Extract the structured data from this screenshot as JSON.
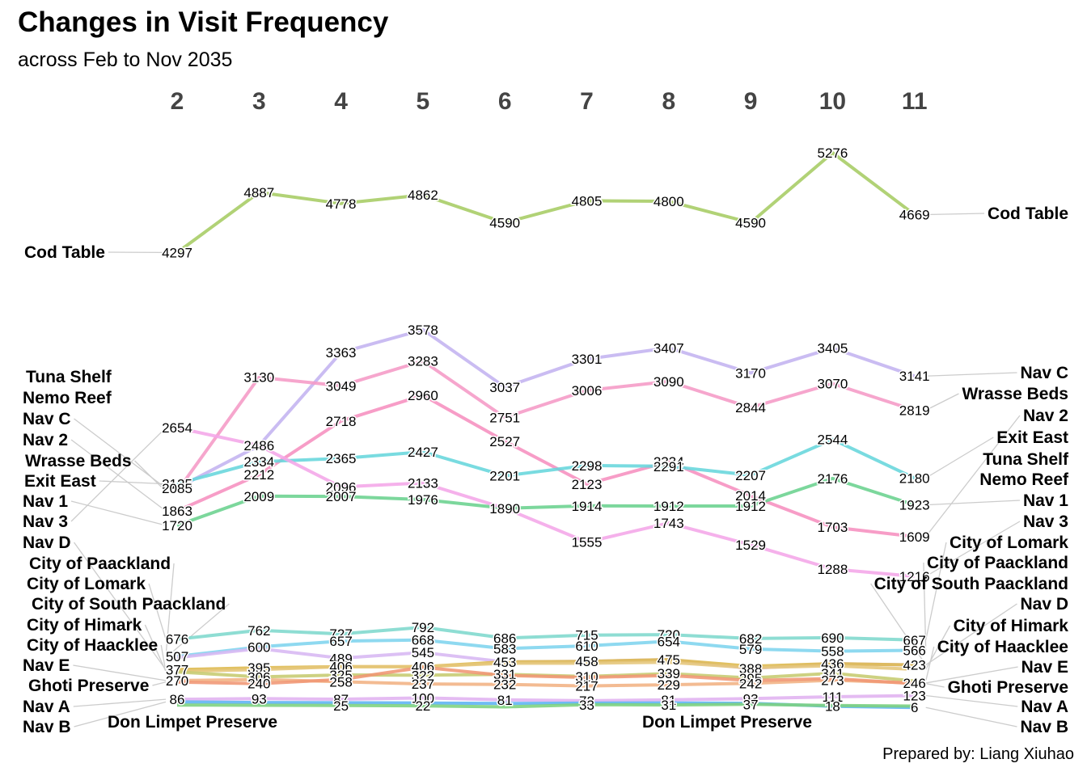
{
  "title": "Changes in Visit Frequency",
  "subtitle": "across Feb to Nov 2035",
  "caption": "Prepared by: Liang Xiuhao",
  "chart_data": {
    "type": "line",
    "chart_style": "slopegraph",
    "x": [
      2,
      3,
      4,
      5,
      6,
      7,
      8,
      9,
      10,
      11
    ],
    "grid": false,
    "legend": "none (series labeled at both ends)",
    "series": [
      {
        "name": "Cod Table",
        "color": "#A6CC63",
        "values": [
          4297,
          4887,
          4778,
          4862,
          4590,
          4805,
          4800,
          4590,
          5276,
          4669
        ]
      },
      {
        "name": "Nav C",
        "color": "#C3B3F0",
        "values": [
          2085,
          2486,
          3363,
          3578,
          3037,
          3301,
          3407,
          3170,
          3405,
          3141
        ]
      },
      {
        "name": "Wrasse Beds",
        "color": "#F59AC6",
        "values": [
          2055,
          3130,
          3049,
          3283,
          2751,
          3006,
          3090,
          2844,
          3070,
          2819
        ]
      },
      {
        "name": "Nav 2",
        "color": "#F690BF",
        "values": [
          1863,
          2212,
          2718,
          2960,
          2527,
          2123,
          2334,
          2014,
          1703,
          1609
        ]
      },
      {
        "name": "Exit East",
        "color": "#66D6DC",
        "values": [
          2125,
          2334,
          2365,
          2427,
          2201,
          2298,
          2291,
          2207,
          2544,
          2180
        ]
      },
      {
        "name": "Nav 1",
        "color": "#6AD28E",
        "values": [
          1720,
          2009,
          2007,
          1976,
          1890,
          1914,
          1912,
          1912,
          2176,
          1923
        ]
      },
      {
        "name": "Nav 3",
        "color": "#F4A6E8",
        "values": [
          2654,
          2486,
          2096,
          2133,
          1890,
          1555,
          1743,
          1529,
          1288,
          1216
        ]
      },
      {
        "name": "City of Lomark",
        "color": "#7ED8CD",
        "values": [
          676,
          762,
          727,
          792,
          686,
          715,
          720,
          682,
          690,
          667
        ]
      },
      {
        "name": "City of Paackland",
        "color": "#7ED4EE",
        "values": [
          507,
          600,
          657,
          668,
          583,
          610,
          654,
          579,
          558,
          566
        ]
      },
      {
        "name": "City of South Paackland",
        "color": "#D7B7F3",
        "values": [
          495,
          583,
          489,
          545,
          453,
          458,
          475,
          388,
          436,
          423
        ]
      },
      {
        "name": "Nav D",
        "color": "#DDB84B",
        "values": [
          377,
          395,
          406,
          406,
          453,
          458,
          475,
          410,
          436,
          423
        ]
      },
      {
        "name": "City of Himark",
        "color": "#E5C67A",
        "values": [
          360,
          377,
          406,
          406,
          440,
          440,
          450,
          395,
          415,
          380
        ]
      },
      {
        "name": "City of Haacklee",
        "color": "#C6CB70",
        "values": [
          355,
          306,
          325,
          322,
          331,
          310,
          339,
          295,
          341,
          265
        ]
      },
      {
        "name": "Nav E",
        "color": "#F1B283",
        "values": [
          270,
          280,
          258,
          237,
          232,
          217,
          229,
          242,
          273,
          246
        ]
      },
      {
        "name": "Ghoti Preserve",
        "color": "#F09674",
        "values": [
          255,
          240,
          280,
          400,
          320,
          300,
          320,
          270,
          290,
          240
        ]
      },
      {
        "name": "Nav A",
        "color": "#E0B2F0",
        "values": [
          86,
          93,
          87,
          100,
          81,
          72,
          81,
          93,
          111,
          123
        ]
      },
      {
        "name": "Nav B",
        "color": "#5CB3F2",
        "values": [
          60,
          55,
          52,
          50,
          45,
          48,
          51,
          47,
          18,
          6
        ]
      },
      {
        "name": "Don Limpet Preserve",
        "color": "#7CD27E",
        "values": [
          30,
          28,
          25,
          22,
          12,
          33,
          31,
          37,
          25,
          20
        ]
      }
    ],
    "value_labels": [
      {
        "x": 2,
        "labels": [
          "4297",
          "2654",
          "2125",
          "2085",
          "1863",
          "1720",
          "676",
          "507",
          "377",
          "270",
          "86"
        ]
      },
      {
        "x": 3,
        "labels": [
          "4887",
          "3130",
          "2486",
          "2334",
          "2212",
          "2009",
          "762",
          "600",
          "395",
          "306",
          "240",
          "93"
        ]
      },
      {
        "x": 4,
        "labels": [
          "4778",
          "3363",
          "3049",
          "2718",
          "2365",
          "2096",
          "2007",
          "727",
          "657",
          "489",
          "406",
          "325",
          "258",
          "87",
          "25"
        ]
      },
      {
        "x": 5,
        "labels": [
          "4862",
          "3578",
          "3283",
          "2960",
          "2427",
          "2133",
          "1976",
          "792",
          "668",
          "545",
          "406",
          "322",
          "237",
          "100",
          "22"
        ]
      },
      {
        "x": 6,
        "labels": [
          "4590",
          "3037",
          "2751",
          "2527",
          "2201",
          "1890",
          "686",
          "583",
          "453",
          "331",
          "232",
          "81"
        ]
      },
      {
        "x": 7,
        "labels": [
          "4805",
          "3301",
          "3006",
          "2298",
          "2123",
          "1914",
          "1555",
          "715",
          "610",
          "458",
          "310",
          "217",
          "72",
          "33"
        ]
      },
      {
        "x": 8,
        "labels": [
          "4800",
          "3407",
          "3090",
          "2334",
          "2291",
          "1912",
          "1743",
          "720",
          "654",
          "475",
          "339",
          "229",
          "81",
          "31"
        ]
      },
      {
        "x": 9,
        "labels": [
          "4590",
          "3170",
          "2844",
          "2207",
          "2014",
          "1912",
          "1529",
          "682",
          "579",
          "388",
          "295",
          "242",
          "93",
          "37"
        ]
      },
      {
        "x": 10,
        "labels": [
          "5276",
          "3405",
          "3070",
          "2544",
          "2176",
          "1703",
          "1288",
          "690",
          "558",
          "436",
          "341",
          "273",
          "111",
          "18"
        ]
      },
      {
        "x": 11,
        "labels": [
          "4669",
          "3141",
          "2819",
          "2180",
          "1923",
          "1609",
          "1216",
          "667",
          "566",
          "423",
          "246",
          "123",
          "6"
        ]
      }
    ],
    "left_labels": [
      "Cod Table",
      "Tuna Shelf",
      "Nemo Reef",
      "Nav C",
      "Nav 2",
      "Wrasse Beds",
      "Exit East",
      "Nav 1",
      "Nav 3",
      "Nav D",
      "City of Paackland",
      "City of Lomark",
      "City of South Paackland",
      "City of Himark",
      "City of Haacklee",
      "Nav E",
      "Ghoti Preserve",
      "Nav A",
      "Nav B",
      "Don Limpet Preserve"
    ],
    "right_labels": [
      "Cod Table",
      "Nav C",
      "Wrasse Beds",
      "Nav 2",
      "Exit East",
      "Tuna Shelf",
      "Nemo Reef",
      "Nav 1",
      "Nav 3",
      "City of Lomark",
      "City of Paackland",
      "City of South Paackland",
      "Nav D",
      "City of Himark",
      "City of Haacklee",
      "Nav E",
      "Ghoti Preserve",
      "Nav A",
      "Nav B",
      "Don Limpet Preserve"
    ]
  }
}
